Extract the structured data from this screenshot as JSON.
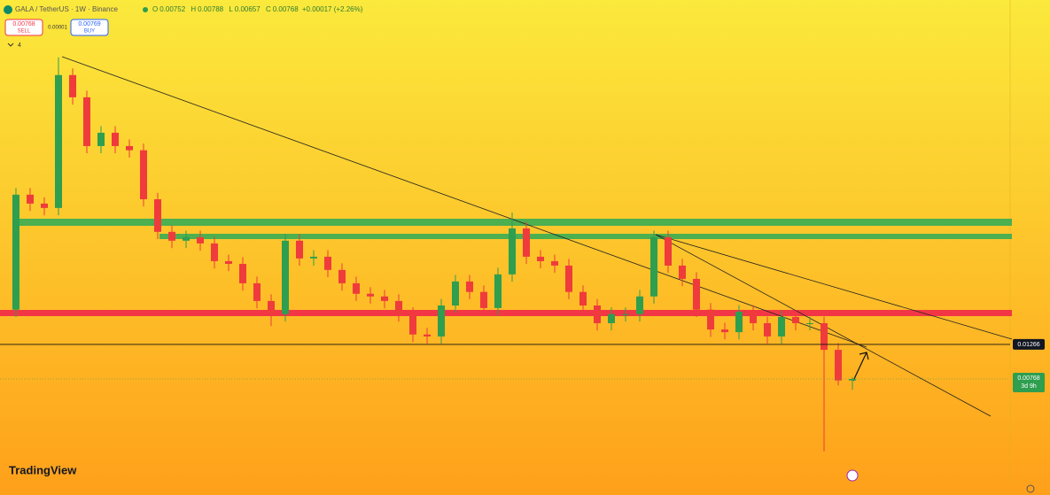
{
  "chart_data": {
    "type": "candlestick",
    "title": "GALA / TetherUS · 1W · Binance",
    "header": {
      "o_label": "O",
      "open": 0.00752,
      "h_label": "H",
      "high": 0.00788,
      "l_label": "L",
      "low": 0.00657,
      "c_label": "C",
      "close": 0.00768,
      "change": "+0.00017 (+2.26%)"
    },
    "trade": {
      "sell_price": 0.00768,
      "sell_label": "SELL",
      "spread": "0.00001",
      "buy_price": 0.00769,
      "buy_label": "BUY"
    },
    "indicator_count": "4",
    "log_scale": true,
    "ylim": [
      0.00172,
      1.83
    ],
    "up_color": "#2e9e4f",
    "down_color": "#ef3b3b",
    "open": [
      0.0209,
      0.11,
      0.0967,
      0.0908,
      0.619,
      0.449,
      0.222,
      0.269,
      0.222,
      0.209,
      0.103,
      0.0643,
      0.0566,
      0.0595,
      0.0544,
      0.0421,
      0.0405,
      0.0306,
      0.0237,
      0.0196,
      0.0566,
      0.0438,
      0.0449,
      0.0371,
      0.0306,
      0.0263,
      0.0253,
      0.0237,
      0.0196,
      0.0146,
      0.0142,
      0.0222,
      0.0314,
      0.027,
      0.0214,
      0.0348,
      0.0676,
      0.0449,
      0.0421,
      0.0395,
      0.027,
      0.0222,
      0.0172,
      0.0196,
      0.0196,
      0.0253,
      0.0595,
      0.0395,
      0.0326,
      0.0209,
      0.0157,
      0.0151,
      0.0203,
      0.0172,
      0.0142,
      0.0188,
      0.0172,
      0.0172,
      0.0117,
      0.00752
    ],
    "high": [
      0.121,
      0.121,
      0.106,
      0.8,
      0.681,
      0.494,
      0.296,
      0.296,
      0.244,
      0.23,
      0.113,
      0.0707,
      0.0655,
      0.0655,
      0.0598,
      0.0463,
      0.0446,
      0.0337,
      0.0261,
      0.0623,
      0.0623,
      0.0494,
      0.0494,
      0.0408,
      0.0337,
      0.0289,
      0.0278,
      0.0261,
      0.0216,
      0.0161,
      0.0244,
      0.0345,
      0.0345,
      0.0297,
      0.0383,
      0.085,
      0.0744,
      0.0494,
      0.0463,
      0.0435,
      0.0297,
      0.0244,
      0.0216,
      0.0216,
      0.0278,
      0.0655,
      0.0655,
      0.0435,
      0.0359,
      0.023,
      0.0173,
      0.0223,
      0.0223,
      0.0189,
      0.0207,
      0.0207,
      0.0189,
      0.0189,
      0.0129,
      0.00788
    ],
    "low": [
      0.0188,
      0.087,
      0.0817,
      0.0817,
      0.404,
      0.2,
      0.2,
      0.2,
      0.188,
      0.0927,
      0.0579,
      0.0509,
      0.0509,
      0.049,
      0.0379,
      0.0365,
      0.0275,
      0.0213,
      0.0165,
      0.0176,
      0.0394,
      0.0394,
      0.0334,
      0.0275,
      0.0237,
      0.0228,
      0.0213,
      0.0176,
      0.0131,
      0.0128,
      0.0128,
      0.02,
      0.0243,
      0.0193,
      0.0193,
      0.0313,
      0.0404,
      0.0379,
      0.0356,
      0.0243,
      0.02,
      0.0155,
      0.0155,
      0.0176,
      0.0176,
      0.0228,
      0.0356,
      0.0293,
      0.0188,
      0.0141,
      0.0136,
      0.0136,
      0.0155,
      0.0128,
      0.0128,
      0.0155,
      0.0155,
      0.0027,
      0.007,
      0.00657
    ],
    "close": [
      0.11,
      0.0967,
      0.0908,
      0.619,
      0.449,
      0.222,
      0.269,
      0.222,
      0.209,
      0.103,
      0.0643,
      0.0566,
      0.0595,
      0.0544,
      0.0421,
      0.0405,
      0.0306,
      0.0237,
      0.0196,
      0.0566,
      0.0438,
      0.0449,
      0.0371,
      0.0306,
      0.0263,
      0.0253,
      0.0237,
      0.0196,
      0.0146,
      0.0142,
      0.0222,
      0.0314,
      0.027,
      0.0214,
      0.0348,
      0.0676,
      0.0449,
      0.0421,
      0.0395,
      0.027,
      0.0222,
      0.0172,
      0.0196,
      0.0196,
      0.0253,
      0.0595,
      0.0395,
      0.0326,
      0.0209,
      0.0157,
      0.0151,
      0.0203,
      0.0172,
      0.0142,
      0.0188,
      0.0172,
      0.0172,
      0.0117,
      0.00752,
      0.00768
    ],
    "level_line": 0.01266,
    "current_price": 0.00768,
    "countdown": "3d 9h",
    "brand": "TradingView"
  }
}
